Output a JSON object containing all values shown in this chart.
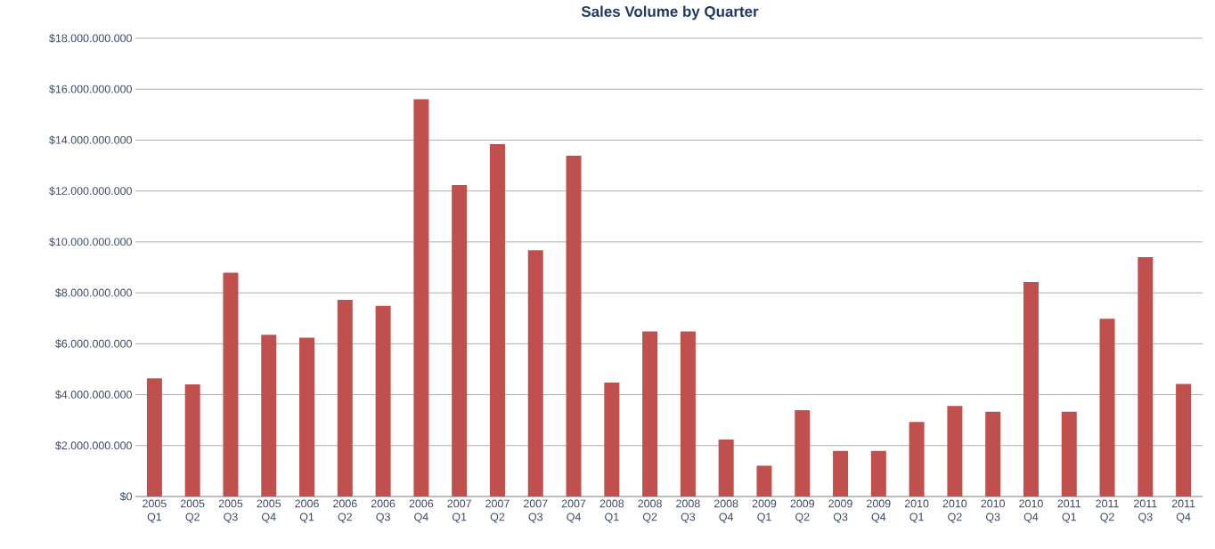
{
  "chart_data": {
    "type": "bar",
    "title": "Sales Volume by Quarter",
    "categories": [
      "2005 Q1",
      "2005 Q2",
      "2005 Q3",
      "2005 Q4",
      "2006 Q1",
      "2006 Q2",
      "2006 Q3",
      "2006 Q4",
      "2007 Q1",
      "2007 Q2",
      "2007 Q3",
      "2007 Q4",
      "2008 Q1",
      "2008 Q2",
      "2008 Q3",
      "2008 Q4",
      "2009 Q1",
      "2009 Q2",
      "2009 Q3",
      "2009 Q4",
      "2010 Q1",
      "2010 Q2",
      "2010 Q3",
      "2010 Q4",
      "2011 Q1",
      "2011 Q2",
      "2011 Q3",
      "2011 Q4"
    ],
    "values": [
      4640000000,
      4400000000,
      8790000000,
      6350000000,
      6240000000,
      7720000000,
      7490000000,
      15610000000,
      12230000000,
      13840000000,
      9670000000,
      13390000000,
      4470000000,
      6480000000,
      6480000000,
      2240000000,
      1210000000,
      3390000000,
      1790000000,
      1790000000,
      2930000000,
      3560000000,
      3330000000,
      8420000000,
      3330000000,
      6980000000,
      9400000000,
      4420000000
    ],
    "color": "#c0504d",
    "ylim": [
      0,
      18000000000
    ],
    "yticks": [
      {
        "value": 0,
        "label": "$0"
      },
      {
        "value": 2000000000,
        "label": "$2.000.000.000"
      },
      {
        "value": 4000000000,
        "label": "$4.000.000.000"
      },
      {
        "value": 6000000000,
        "label": "$6.000.000.000"
      },
      {
        "value": 8000000000,
        "label": "$8.000.000.000"
      },
      {
        "value": 10000000000,
        "label": "$10.000.000.000"
      },
      {
        "value": 12000000000,
        "label": "$12.000.000.000"
      },
      {
        "value": 14000000000,
        "label": "$14.000.000.000"
      },
      {
        "value": 16000000000,
        "label": "$16.000.000.000"
      },
      {
        "value": 18000000000,
        "label": "$18.000.000.000"
      }
    ],
    "grid": "y"
  }
}
